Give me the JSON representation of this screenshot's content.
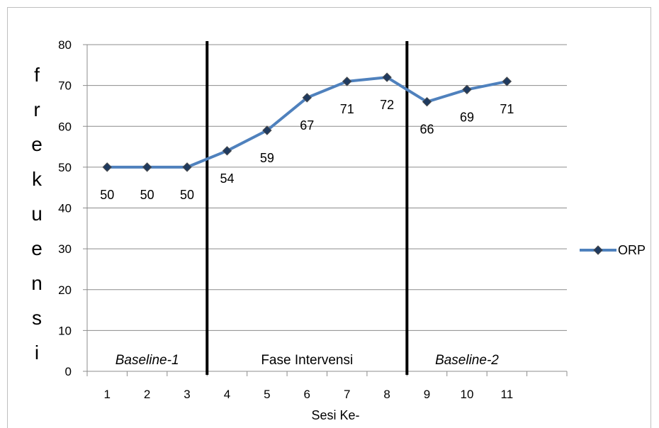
{
  "chart_data": {
    "type": "line",
    "title": "",
    "xlabel": "Sesi Ke-",
    "ylabel": "frekuensi",
    "categories": [
      "1",
      "2",
      "3",
      "4",
      "5",
      "6",
      "7",
      "8",
      "9",
      "10",
      "11"
    ],
    "series": [
      {
        "name": "ORP",
        "values": [
          50,
          50,
          50,
          54,
          59,
          67,
          71,
          72,
          66,
          69,
          71
        ],
        "color": "#4f81bd",
        "marker_color": "#1f3a5f"
      }
    ],
    "data_labels": [
      "50",
      "50",
      "50",
      "54",
      "59",
      "67",
      "71",
      "72",
      "66",
      "69",
      "71"
    ],
    "ylim": [
      0,
      80
    ],
    "yticks": [
      "0",
      "10",
      "20",
      "30",
      "40",
      "50",
      "60",
      "70",
      "80"
    ],
    "grid": true,
    "legend_position": "right",
    "phases": [
      {
        "label": "Baseline-1",
        "italic": true,
        "from": 1,
        "to": 3
      },
      {
        "label": "Fase Intervensi",
        "italic": false,
        "from": 4,
        "to": 8
      },
      {
        "label": "Baseline-2",
        "italic": true,
        "from": 9,
        "to": 11
      }
    ]
  }
}
